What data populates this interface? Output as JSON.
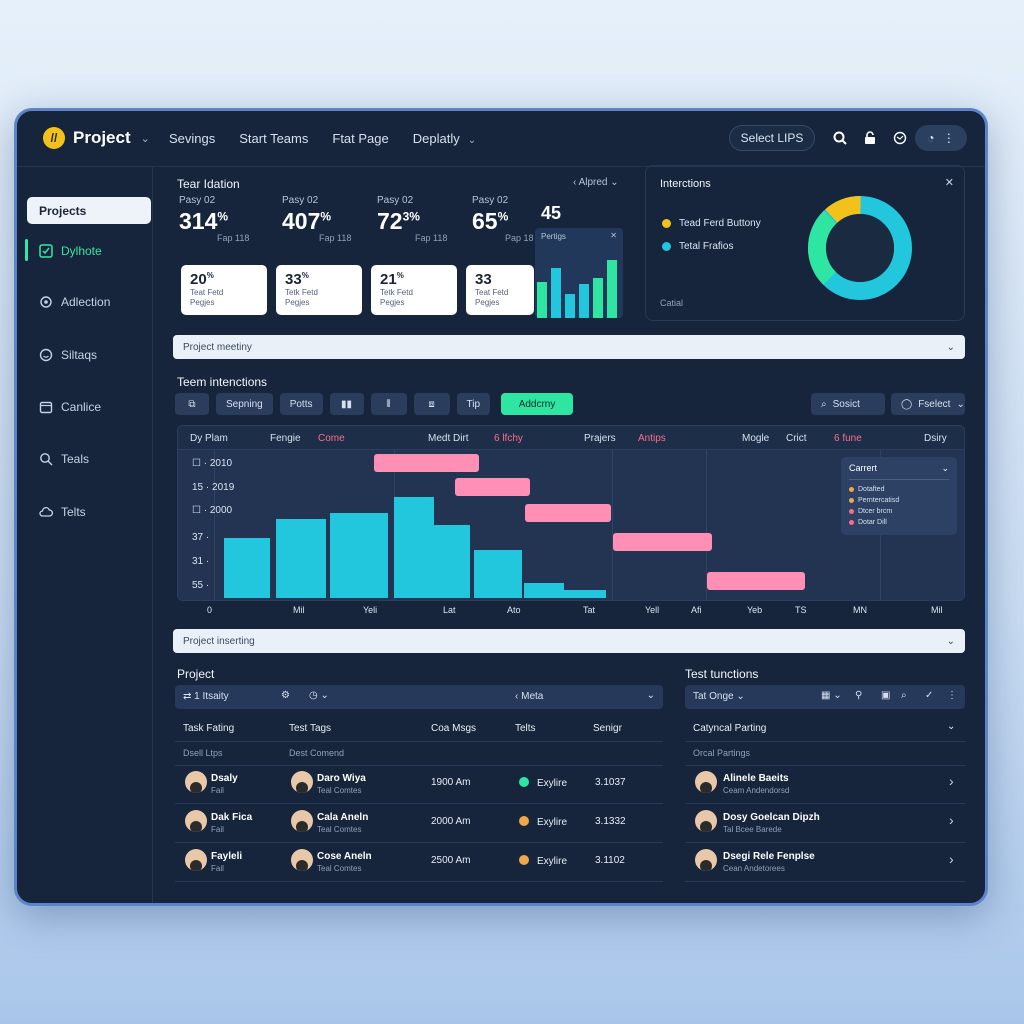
{
  "topbar": {
    "logo_badge": "//",
    "app_title": "Project",
    "nav": [
      "Sevings",
      "Start Teams",
      "Ftat Page",
      "Deplatly"
    ],
    "select_label": "Select LIPS"
  },
  "sidebar": {
    "items": [
      {
        "label": "Projects"
      },
      {
        "label": "Dylhote"
      },
      {
        "label": "Adlection"
      },
      {
        "label": "Siltaqs"
      },
      {
        "label": "Canlice"
      },
      {
        "label": "Teals"
      },
      {
        "label": "Telts"
      }
    ]
  },
  "overview": {
    "title": "Tear Idation",
    "filter": "Alpred",
    "stats": [
      {
        "title": "Pasy 02",
        "value": "314",
        "unit": "%",
        "sub": "Fap 118"
      },
      {
        "title": "Pasy 02",
        "value": "407",
        "unit": "%",
        "sub": "Fap 118"
      },
      {
        "title": "Pasy 02",
        "value": "72",
        "unit": "3%",
        "sub": "Fap 118"
      },
      {
        "title": "Pasy 02",
        "value": "65",
        "unit": "%",
        "sub": "Pap 18"
      }
    ],
    "mini": {
      "value": "45",
      "label": "Pertigs"
    },
    "cards": [
      {
        "value": "20",
        "unit": "%",
        "line1": "Teat Fetd",
        "line2": "Pegjes"
      },
      {
        "value": "33",
        "unit": "%",
        "line1": "Tetk Fetd",
        "line2": "Pegjes"
      },
      {
        "value": "21",
        "unit": "%",
        "line1": "Tetk Fetd",
        "line2": "Pegjes"
      },
      {
        "value": "33",
        "unit": "",
        "line1": "Teat Fetd",
        "line2": "Pegjes"
      }
    ]
  },
  "interactions": {
    "title": "Interctions",
    "legend": [
      "Tead Ferd Buttony",
      "Tetal Frafios"
    ],
    "footer": "Catial",
    "colors": {
      "yellow": "#f2c21b",
      "cyan": "#22c6dd",
      "green": "#2ee6a1",
      "navy": "#1a2a40"
    }
  },
  "bars": {
    "project_meeting": "Project meetiny",
    "project_inserting": "Project inserting"
  },
  "team": {
    "title": "Teem intenctions",
    "toolbar": [
      "Sepning",
      "Potts",
      "Tip",
      "Addcrny"
    ],
    "search": "Sosict",
    "select": "Fselect"
  },
  "gantt": {
    "headers": [
      "Dy Plam",
      "Fengie",
      "Come",
      "Medt Dirt",
      "6 lfchy",
      "Prajers",
      "Antips",
      "Mogle",
      "Crict",
      "6 fune",
      "Dsiry"
    ],
    "rows": [
      "2010",
      "2019",
      "2000",
      "37",
      "31",
      "55"
    ],
    "row_prefix": [
      "☐",
      "15",
      "☐",
      "37",
      "31",
      "55"
    ],
    "axis": [
      "0",
      "Mil",
      "Yeli",
      "Lat",
      "Ato",
      "Tat",
      "Yell",
      "Afi",
      "Yeb",
      "TS",
      "MN",
      "Mil"
    ],
    "popover": {
      "title": "Carrert",
      "items": [
        "Dotafted",
        "Perntercatisd",
        "Dtcer brcm",
        "Dotar Dill"
      ]
    },
    "chart_data": {
      "type": "bar",
      "values": [
        58,
        76,
        82,
        97,
        70,
        46,
        14,
        8
      ],
      "ylim": [
        0,
        100
      ],
      "tasks": [
        {
          "row": 0,
          "start": 0.26,
          "end": 0.4
        },
        {
          "row": 1,
          "start": 0.368,
          "end": 0.468
        },
        {
          "row": 2,
          "start": 0.462,
          "end": 0.576
        },
        {
          "row": 3,
          "start": 0.578,
          "end": 0.71
        },
        {
          "row": 5,
          "start": 0.704,
          "end": 0.834
        }
      ]
    }
  },
  "project_table": {
    "title": "Project",
    "filter_left": "1 Itsaity",
    "filter_right": "Meta",
    "headers": [
      "Task Fating",
      "Test Tags",
      "Coa Msgs",
      "Telts",
      "Senigr"
    ],
    "subheaders": [
      "Dsell Ltps",
      "Dest Comend"
    ],
    "rows": [
      {
        "name": "Dsaly",
        "role": "Fail",
        "tag": "Daro Wiya",
        "tag_sub": "Teal Comtes",
        "time": "1900 Am",
        "status": "Exylire",
        "code": "3.1037",
        "status_color": "#2ee6a1"
      },
      {
        "name": "Dak Fica",
        "role": "Fail",
        "tag": "Cala Aneln",
        "tag_sub": "Teal Comtes",
        "time": "2000 Am",
        "status": "Exylire",
        "code": "3.1332",
        "status_color": "#f0a64a"
      },
      {
        "name": "Fayleli",
        "role": "Fail",
        "tag": "Cose Aneln",
        "tag_sub": "Teal Comtes",
        "time": "2500 Am",
        "status": "Exylire",
        "code": "3.1102",
        "status_color": "#f0a64a"
      }
    ]
  },
  "test_table": {
    "title": "Test tunctions",
    "filter": "Tat Onge",
    "header": "Catyncal Parting",
    "subheader": "Orcal Partings",
    "rows": [
      {
        "name": "Alinele Baeits",
        "role": "Ceam Andendorsd"
      },
      {
        "name": "Dosy Goelcan Dipzh",
        "role": "Tal Bcee Barede"
      },
      {
        "name": "Dsegi Rele Fenplse",
        "role": "Cean Andetorees"
      }
    ]
  }
}
